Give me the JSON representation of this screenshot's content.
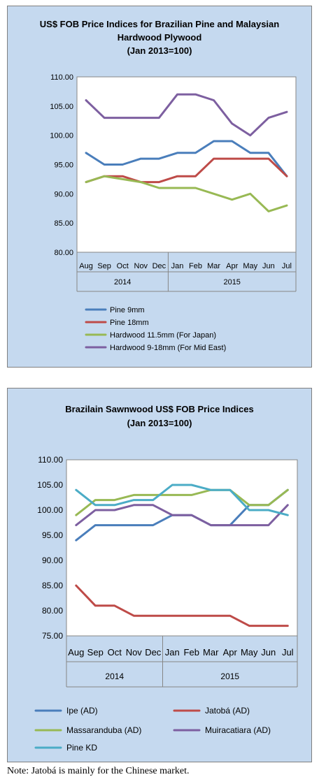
{
  "chart_data": [
    {
      "type": "line",
      "title_lines": [
        "US$ FOB Price Indices for Brazilian Pine and Malaysian",
        "Hardwood Plywood",
        "(Jan 2013=100)"
      ],
      "categories": [
        "Aug",
        "Sep",
        "Oct",
        "Nov",
        "Dec",
        "Jan",
        "Feb",
        "Mar",
        "Apr",
        "May",
        "Jun",
        "Jul"
      ],
      "groups": [
        {
          "label": "2014",
          "count": 5
        },
        {
          "label": "2015",
          "count": 7
        }
      ],
      "ylim": [
        80,
        110
      ],
      "ytick_labels": [
        "80.00",
        "85.00",
        "90.00",
        "95.00",
        "100.00",
        "105.00",
        "110.00"
      ],
      "grid": false,
      "legend_position": "bottom",
      "series": [
        {
          "name": "Pine 9mm",
          "color": "#4a7ebb",
          "values": [
            97,
            95,
            95,
            96,
            96,
            97,
            97,
            99,
            99,
            97,
            97,
            93
          ]
        },
        {
          "name": "Pine 18mm",
          "color": "#be4b48",
          "values": [
            92,
            93,
            93,
            92,
            92,
            93,
            93,
            96,
            96,
            96,
            96,
            93
          ]
        },
        {
          "name": "Hardwood 11.5mm (For Japan)",
          "color": "#98b954",
          "values": [
            92,
            93,
            92.5,
            92,
            91,
            91,
            91,
            90,
            89,
            90,
            87,
            88
          ]
        },
        {
          "name": "Hardwood 9-18mm (For Mid East)",
          "color": "#7d5fa0",
          "values": [
            106,
            103,
            103,
            103,
            103,
            107,
            107,
            106,
            102,
            100,
            103,
            104
          ]
        }
      ]
    },
    {
      "type": "line",
      "title_lines": [
        "Brazilain Sawnwood US$ FOB Price Indices",
        "(Jan 2013=100)"
      ],
      "categories": [
        "Aug",
        "Sep",
        "Oct",
        "Nov",
        "Dec",
        "Jan",
        "Feb",
        "Mar",
        "Apr",
        "May",
        "Jun",
        "Jul"
      ],
      "groups": [
        {
          "label": "2014",
          "count": 5
        },
        {
          "label": "2015",
          "count": 7
        }
      ],
      "ylim": [
        75,
        110
      ],
      "ytick_labels": [
        "75.00",
        "80.00",
        "85.00",
        "90.00",
        "95.00",
        "100.00",
        "105.00",
        "110.00"
      ],
      "grid": false,
      "legend_position": "bottom",
      "series": [
        {
          "name": "Ipe (AD)",
          "color": "#4a7ebb",
          "values": [
            94,
            97,
            97,
            97,
            97,
            99,
            99,
            97,
            97,
            101,
            101,
            104
          ]
        },
        {
          "name": "Jatobá (AD)",
          "color": "#be4b48",
          "values": [
            85,
            81,
            81,
            79,
            79,
            79,
            79,
            79,
            79,
            77,
            77,
            77
          ]
        },
        {
          "name": "Massaranduba (AD)",
          "color": "#98b954",
          "values": [
            99,
            102,
            102,
            103,
            103,
            103,
            103,
            104,
            104,
            101,
            101,
            104
          ]
        },
        {
          "name": "Muiracatiara (AD)",
          "color": "#7d5fa0",
          "values": [
            97,
            100,
            100,
            101,
            101,
            99,
            99,
            97,
            97,
            97,
            97,
            101
          ]
        },
        {
          "name": "Pine KD",
          "color": "#4bacc6",
          "values": [
            104,
            101,
            101,
            102,
            102,
            105,
            105,
            104,
            104,
            100,
            100,
            99
          ]
        }
      ]
    }
  ],
  "note": "Note: Jatobá is mainly for the Chinese market."
}
